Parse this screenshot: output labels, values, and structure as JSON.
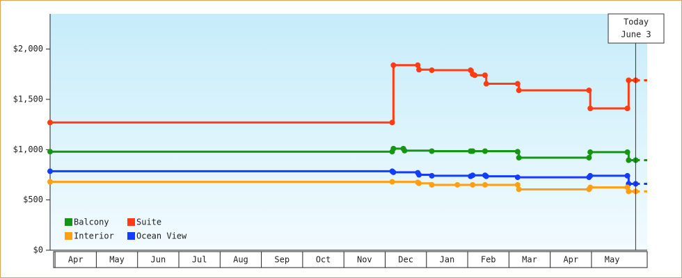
{
  "chart_data": {
    "type": "line",
    "step": true,
    "xlim": [
      -0.12,
      14.35
    ],
    "ylim": [
      0,
      2350
    ],
    "yticks": [
      {
        "value": 0,
        "label": "$0"
      },
      {
        "value": 500,
        "label": "$500"
      },
      {
        "value": 1000,
        "label": "$1,000"
      },
      {
        "value": 1500,
        "label": "$1,500"
      },
      {
        "value": 2000,
        "label": "$2,000"
      }
    ],
    "xticks": [
      {
        "value": 0.5,
        "label": "Apr"
      },
      {
        "value": 1.5,
        "label": "May"
      },
      {
        "value": 2.5,
        "label": "Jun"
      },
      {
        "value": 3.5,
        "label": "Jul"
      },
      {
        "value": 4.5,
        "label": "Aug"
      },
      {
        "value": 5.5,
        "label": "Sep"
      },
      {
        "value": 6.5,
        "label": "Oct"
      },
      {
        "value": 7.5,
        "label": "Nov"
      },
      {
        "value": 8.5,
        "label": "Dec"
      },
      {
        "value": 9.5,
        "label": "Jan"
      },
      {
        "value": 10.5,
        "label": "Feb"
      },
      {
        "value": 11.5,
        "label": "Mar"
      },
      {
        "value": 12.5,
        "label": "Apr"
      },
      {
        "value": 13.5,
        "label": "May"
      }
    ],
    "today": {
      "x": 14.07,
      "label": [
        "Today",
        "June 3"
      ]
    },
    "series": [
      {
        "name": "Suite",
        "color": "#ff3c14",
        "x": [
          -0.12,
          8.17,
          8.2,
          8.79,
          8.82,
          9.13,
          10.07,
          10.12,
          10.17,
          10.42,
          10.45,
          11.21,
          11.24,
          12.94,
          12.97,
          13.87,
          13.9,
          14.07
        ],
        "values": [
          1270,
          1270,
          1840,
          1840,
          1795,
          1790,
          1790,
          1750,
          1740,
          1740,
          1655,
          1655,
          1590,
          1590,
          1410,
          1410,
          1690,
          1690
        ]
      },
      {
        "name": "Balcony",
        "color": "#149614",
        "x": [
          -0.12,
          8.17,
          8.2,
          8.44,
          8.47,
          9.13,
          10.07,
          10.12,
          10.42,
          11.21,
          11.24,
          12.94,
          12.97,
          13.87,
          13.9,
          14.07
        ],
        "values": [
          980,
          980,
          1010,
          1010,
          990,
          985,
          985,
          985,
          985,
          980,
          920,
          920,
          975,
          975,
          895,
          895
        ]
      },
      {
        "name": "Ocean View",
        "color": "#143cff",
        "x": [
          -0.12,
          8.17,
          8.2,
          8.79,
          8.82,
          9.13,
          10.07,
          10.12,
          10.42,
          10.45,
          11.21,
          12.94,
          12.97,
          13.87,
          13.9,
          14.07
        ],
        "values": [
          785,
          785,
          775,
          770,
          750,
          740,
          735,
          745,
          745,
          735,
          725,
          725,
          740,
          740,
          660,
          660
        ]
      },
      {
        "name": "Interior",
        "color": "#ffa014",
        "x": [
          -0.12,
          8.17,
          8.79,
          8.82,
          9.13,
          9.75,
          10.12,
          10.42,
          11.21,
          11.24,
          12.94,
          12.97,
          13.87,
          13.9,
          14.07
        ],
        "values": [
          680,
          680,
          675,
          665,
          650,
          650,
          650,
          650,
          650,
          605,
          605,
          625,
          625,
          585,
          585
        ]
      }
    ],
    "legend_order": [
      1,
      0,
      3,
      2
    ]
  }
}
